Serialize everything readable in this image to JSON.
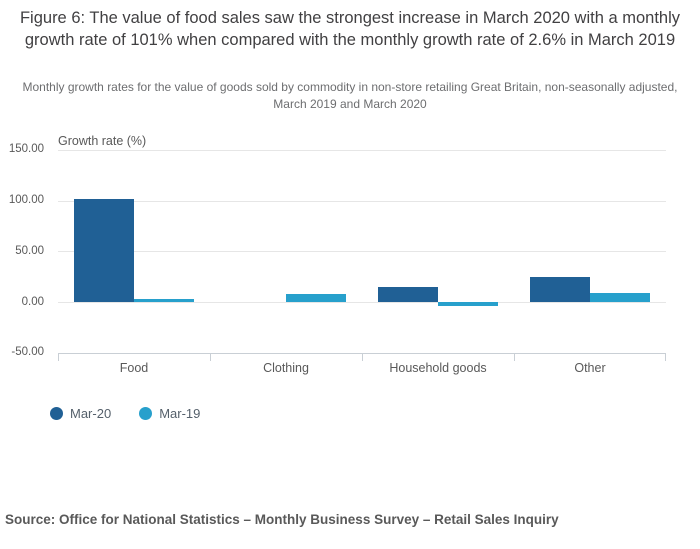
{
  "figure": {
    "title": "Figure 6: The value of food sales saw the strongest increase in March 2020 with a monthly growth rate of 101% when compared with the monthly growth rate of 2.6% in March 2019",
    "subtitle": "Monthly growth rates for the value of goods sold by commodity in non-store retailing Great Britain, non-seasonally adjusted, March 2019 and March 2020",
    "source": "Source: Office for National Statistics – Monthly Business Survey – Retail Sales Inquiry"
  },
  "chart_data": {
    "type": "bar",
    "title": "Figure 6: The value of food sales saw the strongest increase in March 2020 with a monthly growth rate of 101% when compared with the monthly growth rate of 2.6% in March 2019",
    "subtitle": "Monthly growth rates for the value of goods sold by commodity in non-store retailing Great Britain, non-seasonally adjusted, March 2019 and March 2020",
    "xlabel": "",
    "ylabel": "Growth rate (%)",
    "categories": [
      "Food",
      "Clothing",
      "Household goods",
      "Other"
    ],
    "series": [
      {
        "name": "Mar-20",
        "color": "#206095",
        "values": [
          101,
          0,
          15,
          24.5
        ]
      },
      {
        "name": "Mar-19",
        "color": "#27A0CC",
        "values": [
          2.6,
          8,
          -4,
          9
        ]
      }
    ],
    "ylim": [
      -50,
      150
    ],
    "y_ticks": [
      150,
      100,
      50,
      0,
      -50
    ],
    "y_tick_labels": [
      "150.00",
      "100.00",
      "50.00",
      "0.00",
      "-50.00"
    ],
    "grid": true,
    "legend_position": "bottom-left"
  }
}
